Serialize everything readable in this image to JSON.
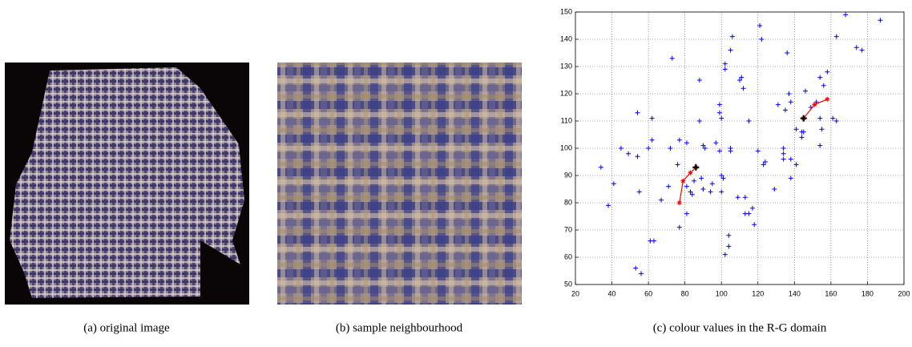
{
  "captions": [
    "(a) original image",
    "(b) sample neighbourhood",
    "(c) colour values in the R-G domain"
  ],
  "chart_data": {
    "type": "scatter",
    "xlim": [
      20,
      200
    ],
    "ylim": [
      50,
      150
    ],
    "xticks": [
      20,
      40,
      60,
      80,
      100,
      120,
      140,
      160,
      180,
      200
    ],
    "yticks": [
      50,
      60,
      70,
      80,
      90,
      100,
      110,
      120,
      130,
      140,
      150
    ],
    "grid": true,
    "series": [
      {
        "color": "#0000ff",
        "marker": "+",
        "line": false,
        "x": [
          34,
          38,
          41,
          45,
          49,
          54,
          54,
          55,
          53,
          56,
          62,
          62,
          60,
          61,
          63,
          67,
          71,
          72,
          73,
          77,
          76,
          77,
          81,
          81,
          81,
          83,
          84,
          85,
          88,
          88,
          90,
          91,
          89,
          90,
          94,
          95,
          97,
          99,
          99,
          100,
          99,
          100,
          100,
          101,
          102,
          102,
          105,
          106,
          105,
          105,
          102,
          104,
          104,
          109,
          110,
          111,
          112,
          113,
          113,
          115,
          115,
          117,
          118,
          120,
          121,
          122,
          123,
          124,
          129,
          131,
          134,
          134,
          134,
          135,
          136,
          137,
          138,
          138,
          138,
          141,
          141,
          144,
          144,
          145,
          146,
          149,
          152,
          154,
          155,
          154,
          154,
          156,
          158,
          161,
          163,
          163,
          168,
          174,
          177,
          187
        ],
        "values": [
          93,
          79,
          87,
          100,
          98,
          97,
          113,
          84,
          56,
          54,
          103,
          111,
          100,
          66,
          66,
          81,
          86,
          100,
          133,
          103,
          94,
          71,
          102,
          76,
          86,
          84,
          83,
          88,
          125,
          110,
          101,
          100,
          89,
          85,
          84,
          87,
          102,
          116,
          113,
          111,
          99,
          84,
          90,
          89,
          131,
          129,
          136,
          141,
          99,
          100,
          61,
          64,
          68,
          82,
          125,
          126,
          122,
          82,
          76,
          76,
          110,
          78,
          72,
          99,
          145,
          140,
          94,
          95,
          85,
          116,
          96,
          100,
          98,
          114,
          135,
          120,
          89,
          96,
          117,
          94,
          107,
          104,
          106,
          106,
          121,
          115,
          117,
          111,
          107,
          101,
          126,
          123,
          128,
          111,
          110,
          141,
          149,
          137,
          136,
          147
        ]
      },
      {
        "color": "#ff0000",
        "marker": "*",
        "line": true,
        "x": [
          77,
          79,
          83,
          86
        ],
        "values": [
          80,
          88,
          91,
          93
        ]
      },
      {
        "color": "#ff0000",
        "marker": "*",
        "line": true,
        "x": [
          158,
          151,
          145
        ],
        "values": [
          118,
          116,
          111
        ]
      },
      {
        "color": "#000000",
        "marker": "+",
        "line": false,
        "x": [
          86,
          145
        ],
        "values": [
          93,
          111
        ]
      }
    ]
  }
}
